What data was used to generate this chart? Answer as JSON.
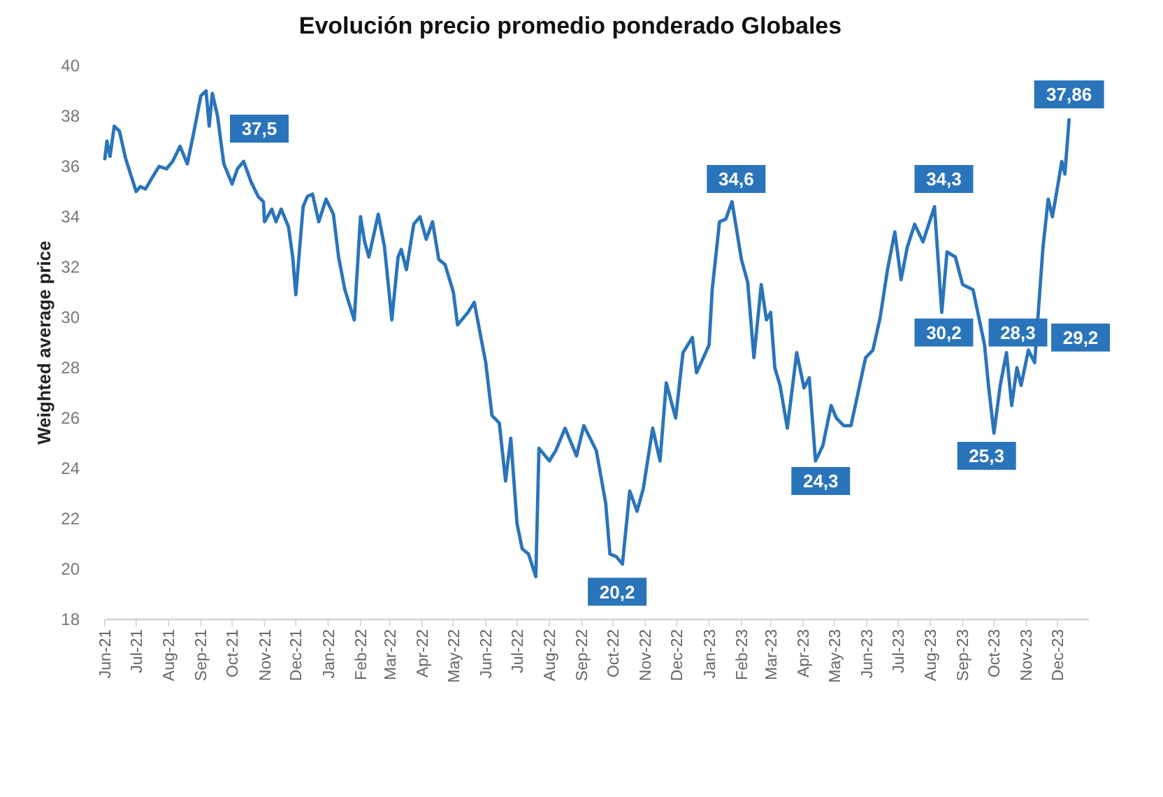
{
  "chart_data": {
    "type": "line",
    "title": "Evolución precio promedio ponderado Globales",
    "ylabel": "Weighted average price",
    "xlim": [
      "2021-06-01",
      "2023-12-31"
    ],
    "ylim": [
      18,
      40
    ],
    "yticks": [
      18,
      20,
      22,
      24,
      26,
      28,
      30,
      32,
      34,
      36,
      38,
      40
    ],
    "xticks": [
      {
        "value": "2021-06-01",
        "label": "Jun-21"
      },
      {
        "value": "2021-07-01",
        "label": "Jul-21"
      },
      {
        "value": "2021-08-01",
        "label": "Aug-21"
      },
      {
        "value": "2021-09-01",
        "label": "Sep-21"
      },
      {
        "value": "2021-10-01",
        "label": "Oct-21"
      },
      {
        "value": "2021-11-01",
        "label": "Nov-21"
      },
      {
        "value": "2021-12-01",
        "label": "Dec-21"
      },
      {
        "value": "2022-01-01",
        "label": "Jan-22"
      },
      {
        "value": "2022-02-01",
        "label": "Feb-22"
      },
      {
        "value": "2022-03-01",
        "label": "Mar-22"
      },
      {
        "value": "2022-04-01",
        "label": "Apr-22"
      },
      {
        "value": "2022-05-01",
        "label": "May-22"
      },
      {
        "value": "2022-06-01",
        "label": "Jun-22"
      },
      {
        "value": "2022-07-01",
        "label": "Jul-22"
      },
      {
        "value": "2022-08-01",
        "label": "Aug-22"
      },
      {
        "value": "2022-09-01",
        "label": "Sep-22"
      },
      {
        "value": "2022-10-01",
        "label": "Oct-22"
      },
      {
        "value": "2022-11-01",
        "label": "Nov-22"
      },
      {
        "value": "2022-12-01",
        "label": "Dec-22"
      },
      {
        "value": "2023-01-01",
        "label": "Jan-23"
      },
      {
        "value": "2023-02-01",
        "label": "Feb-23"
      },
      {
        "value": "2023-03-01",
        "label": "Mar-23"
      },
      {
        "value": "2023-04-01",
        "label": "Apr-23"
      },
      {
        "value": "2023-05-01",
        "label": "May-23"
      },
      {
        "value": "2023-06-01",
        "label": "Jun-23"
      },
      {
        "value": "2023-07-01",
        "label": "Jul-23"
      },
      {
        "value": "2023-08-01",
        "label": "Aug-23"
      },
      {
        "value": "2023-09-01",
        "label": "Sep-23"
      },
      {
        "value": "2023-10-01",
        "label": "Oct-23"
      },
      {
        "value": "2023-11-01",
        "label": "Nov-23"
      },
      {
        "value": "2023-12-01",
        "label": "Dec-23"
      }
    ],
    "marker": "none",
    "line_style": "solid",
    "series": [
      {
        "color": "#2a74bb",
        "x": [
          "2021-06-01",
          "2021-06-03",
          "2021-06-06",
          "2021-06-10",
          "2021-06-15",
          "2021-06-21",
          "2021-07-01",
          "2021-07-05",
          "2021-07-10",
          "2021-07-17",
          "2021-07-23",
          "2021-07-30",
          "2021-08-05",
          "2021-08-12",
          "2021-08-19",
          "2021-08-25",
          "2021-09-01",
          "2021-09-06",
          "2021-09-09",
          "2021-09-12",
          "2021-09-17",
          "2021-09-23",
          "2021-10-01",
          "2021-10-06",
          "2021-10-12",
          "2021-10-19",
          "2021-10-26",
          "2021-10-31",
          "2021-11-01",
          "2021-11-08",
          "2021-11-12",
          "2021-11-17",
          "2021-11-24",
          "2021-11-28",
          "2021-12-01",
          "2021-12-08",
          "2021-12-12",
          "2021-12-17",
          "2021-12-23",
          "2021-12-30",
          "2022-01-06",
          "2022-01-11",
          "2022-01-17",
          "2022-01-26",
          "2022-02-01",
          "2022-02-05",
          "2022-02-09",
          "2022-02-18",
          "2022-02-24",
          "2022-03-03",
          "2022-03-09",
          "2022-03-12",
          "2022-03-17",
          "2022-03-24",
          "2022-03-30",
          "2022-04-05",
          "2022-04-11",
          "2022-04-17",
          "2022-04-23",
          "2022-05-01",
          "2022-05-05",
          "2022-05-15",
          "2022-05-21",
          "2022-06-01",
          "2022-06-07",
          "2022-06-14",
          "2022-06-20",
          "2022-06-25",
          "2022-07-01",
          "2022-07-06",
          "2022-07-12",
          "2022-07-19",
          "2022-07-22",
          "2022-08-01",
          "2022-08-07",
          "2022-08-16",
          "2022-08-27",
          "2022-09-03",
          "2022-09-15",
          "2022-09-24",
          "2022-09-28",
          "2022-10-04",
          "2022-10-10",
          "2022-10-17",
          "2022-10-24",
          "2022-10-30",
          "2022-11-08",
          "2022-11-15",
          "2022-11-21",
          "2022-11-30",
          "2022-12-07",
          "2022-12-16",
          "2022-12-20",
          "2023-01-01",
          "2023-01-04",
          "2023-01-11",
          "2023-01-17",
          "2023-01-23",
          "2023-02-01",
          "2023-02-07",
          "2023-02-13",
          "2023-02-20",
          "2023-02-25",
          "2023-03-01",
          "2023-03-05",
          "2023-03-10",
          "2023-03-17",
          "2023-03-26",
          "2023-04-02",
          "2023-04-07",
          "2023-04-13",
          "2023-04-20",
          "2023-04-28",
          "2023-05-03",
          "2023-05-10",
          "2023-05-17",
          "2023-05-31",
          "2023-06-07",
          "2023-06-14",
          "2023-06-21",
          "2023-06-28",
          "2023-07-04",
          "2023-07-10",
          "2023-07-17",
          "2023-07-25",
          "2023-08-05",
          "2023-08-12",
          "2023-08-17",
          "2023-08-25",
          "2023-09-01",
          "2023-09-11",
          "2023-09-22",
          "2023-09-26",
          "2023-10-01",
          "2023-10-07",
          "2023-10-13",
          "2023-10-18",
          "2023-10-23",
          "2023-10-27",
          "2023-11-03",
          "2023-11-09",
          "2023-11-17",
          "2023-11-22",
          "2023-11-26",
          "2023-12-01",
          "2023-12-05",
          "2023-12-08",
          "2023-12-12"
        ],
        "values": [
          36.3,
          37.0,
          36.4,
          37.6,
          37.4,
          36.3,
          35.0,
          35.2,
          35.1,
          35.6,
          36.0,
          35.9,
          36.2,
          36.8,
          36.1,
          37.3,
          38.8,
          39.0,
          37.6,
          38.9,
          38.0,
          36.1,
          35.3,
          35.9,
          36.2,
          35.4,
          34.8,
          34.6,
          33.8,
          34.3,
          33.8,
          34.3,
          33.6,
          32.4,
          30.9,
          34.4,
          34.8,
          34.9,
          33.8,
          34.7,
          34.1,
          32.4,
          31.1,
          29.9,
          34.0,
          33.0,
          32.4,
          34.1,
          32.8,
          29.9,
          32.4,
          32.7,
          31.9,
          33.7,
          34.0,
          33.1,
          33.8,
          32.3,
          32.1,
          31.0,
          29.7,
          30.2,
          30.6,
          28.2,
          26.1,
          25.8,
          23.5,
          25.2,
          21.8,
          20.8,
          20.6,
          19.7,
          24.8,
          24.3,
          24.7,
          25.6,
          24.5,
          25.7,
          24.7,
          22.6,
          20.6,
          20.5,
          20.2,
          23.1,
          22.3,
          23.2,
          25.6,
          24.3,
          27.4,
          26.0,
          28.6,
          29.2,
          27.8,
          28.9,
          31.1,
          33.8,
          33.9,
          34.6,
          32.3,
          31.4,
          28.4,
          31.3,
          29.9,
          30.2,
          28.0,
          27.3,
          25.6,
          28.6,
          27.2,
          27.6,
          24.3,
          24.9,
          26.5,
          26.0,
          25.7,
          25.7,
          28.4,
          28.7,
          30.0,
          31.9,
          33.4,
          31.5,
          32.8,
          33.7,
          33.0,
          34.4,
          30.2,
          32.6,
          32.4,
          31.3,
          31.1,
          28.9,
          27.2,
          25.4,
          27.3,
          28.6,
          26.5,
          28.0,
          27.3,
          28.7,
          28.2,
          32.8,
          34.7,
          34.0,
          35.2,
          36.2,
          35.7,
          37.86
        ]
      }
    ],
    "annotations": [
      {
        "text": "37,5",
        "x": "2021-10-27",
        "y": 37.5
      },
      {
        "text": "20,2",
        "x": "2022-10-05",
        "y": 19.1
      },
      {
        "text": "34,6",
        "x": "2023-01-27",
        "y": 35.5
      },
      {
        "text": "24,3",
        "x": "2023-04-18",
        "y": 23.5
      },
      {
        "text": "34,3",
        "x": "2023-08-14",
        "y": 35.5
      },
      {
        "text": "30,2",
        "x": "2023-08-14",
        "y": 29.4
      },
      {
        "text": "25,3",
        "x": "2023-09-24",
        "y": 24.5
      },
      {
        "text": "28,3",
        "x": "2023-10-24",
        "y": 29.4
      },
      {
        "text": "29,2",
        "x": "2023-12-23",
        "y": 29.2
      },
      {
        "text": "37,86",
        "x": "2023-12-12",
        "y": 37.86
      }
    ]
  }
}
